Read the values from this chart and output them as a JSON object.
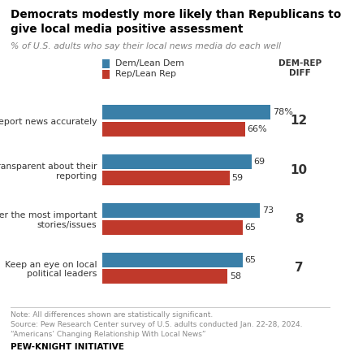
{
  "title_line1": "Democrats modestly more likely than Republicans to",
  "title_line2": "give local media positive assessment",
  "subtitle": "% of U.S. adults who say their local news media do each well",
  "categories": [
    "Report news accurately",
    "Are transparent about their\nreporting",
    "Cover the most important\nstories/issues",
    "Keep an eye on local\npolitical leaders"
  ],
  "dem_values": [
    78,
    69,
    73,
    65
  ],
  "rep_values": [
    66,
    59,
    65,
    58
  ],
  "dem_labels": [
    "78%",
    "69",
    "73",
    "65"
  ],
  "rep_labels": [
    "66%",
    "59",
    "65",
    "58"
  ],
  "diff_values": [
    "12",
    "10",
    "8",
    "7"
  ],
  "dem_color": "#3a7fa8",
  "rep_color": "#c0392b",
  "bar_height": 0.3,
  "legend_dem": "Dem/Lean Dem",
  "legend_rep": "Rep/Lean Rep",
  "diff_label": "DEM-REP\nDIFF",
  "note_line1": "Note: All differences shown are statistically significant.",
  "note_line2": "Source: Pew Research Center survey of U.S. adults conducted Jan. 22-28, 2024.",
  "note_line3": "“Americans’ Changing Relationship With Local News”",
  "footer": "PEW-KNIGHT INITIATIVE",
  "bg_color": "#ffffff",
  "title_color": "#000000",
  "subtitle_color": "#808080",
  "note_color": "#888888",
  "footer_color": "#000000",
  "value_label_color": "#333333",
  "diff_color": "#333333",
  "cat_label_color": "#333333"
}
